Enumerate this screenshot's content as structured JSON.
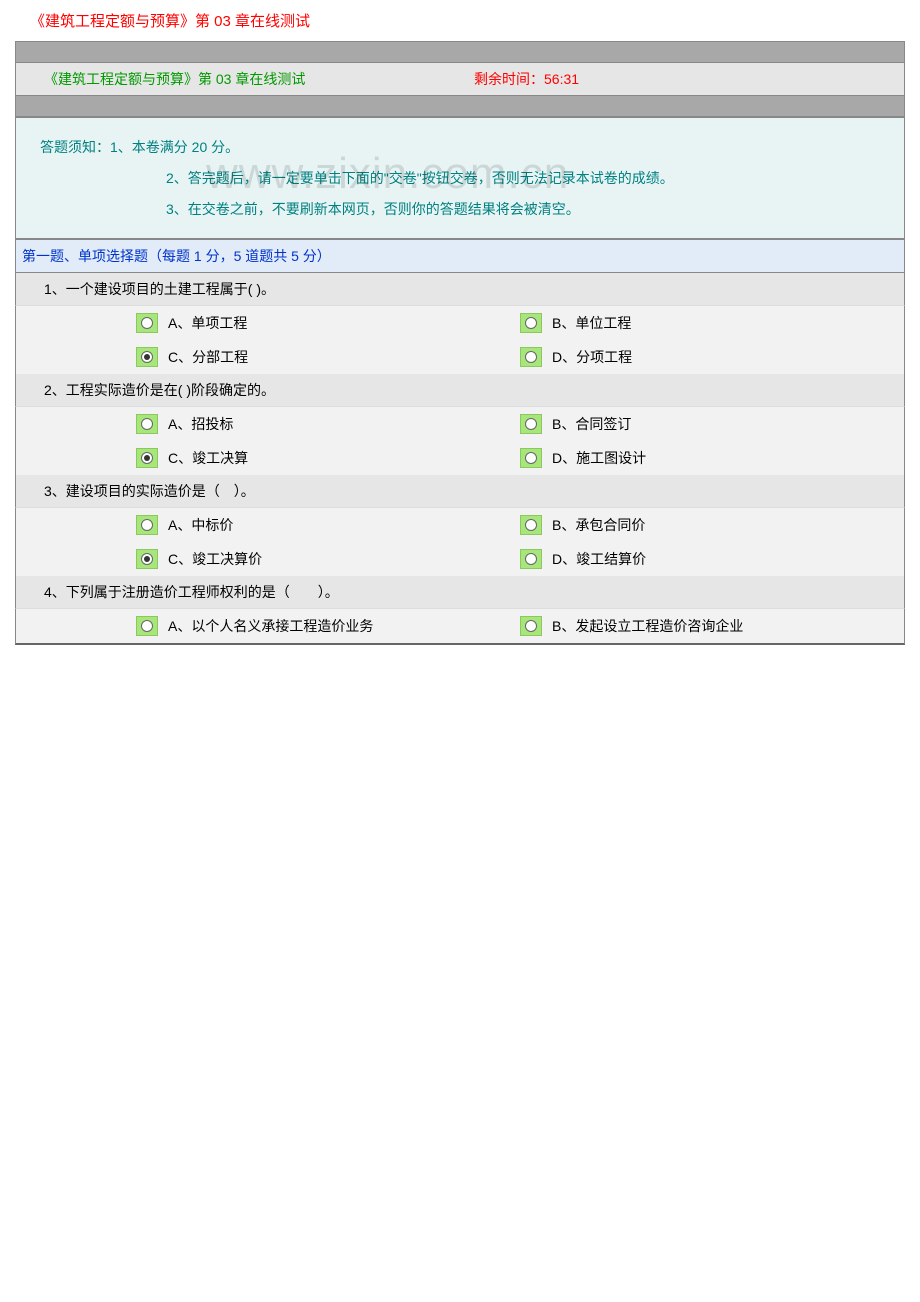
{
  "page_title": "《建筑工程定额与预算》第 03 章在线测试",
  "header": {
    "left": "《建筑工程定额与预算》第 03 章在线测试",
    "right": "剩余时间：56:31"
  },
  "watermark": "www.zixin.com.cn",
  "notice": {
    "line1": "答题须知：1、本卷满分 20 分。",
    "line2": "2、答完题后，请一定要单击下面的\"交卷\"按钮交卷，否则无法记录本试卷的成绩。",
    "line3": "3、在交卷之前，不要刷新本网页，否则你的答题结果将会被清空。"
  },
  "section_header": "第一题、单项选择题（每题 1 分，5 道题共 5 分）",
  "questions": [
    {
      "text": "1、一个建设项目的土建工程属于( )。",
      "options": [
        {
          "label": "A、单项工程",
          "checked": false
        },
        {
          "label": "B、单位工程",
          "checked": false
        },
        {
          "label": "C、分部工程",
          "checked": true
        },
        {
          "label": "D、分项工程",
          "checked": false
        }
      ]
    },
    {
      "text": "2、工程实际造价是在( )阶段确定的。",
      "options": [
        {
          "label": "A、招投标",
          "checked": false
        },
        {
          "label": "B、合同签订",
          "checked": false
        },
        {
          "label": "C、竣工决算",
          "checked": true
        },
        {
          "label": "D、施工图设计",
          "checked": false
        }
      ]
    },
    {
      "text": "3、建设项目的实际造价是（　）。",
      "options": [
        {
          "label": "A、中标价",
          "checked": false
        },
        {
          "label": "B、承包合同价",
          "checked": false
        },
        {
          "label": "C、竣工决算价",
          "checked": true
        },
        {
          "label": "D、竣工结算价",
          "checked": false
        }
      ]
    },
    {
      "text": "4、下列属于注册造价工程师权利的是（　　）。",
      "options": [
        {
          "label": "A、以个人名义承接工程造价业务",
          "checked": false
        },
        {
          "label": "B、发起设立工程造价咨询企业",
          "checked": false
        }
      ]
    }
  ],
  "colors": {
    "title_red": "#ff0000",
    "header_green": "#009900",
    "timer_red": "#ff0000",
    "notice_bg": "#e8f4f4",
    "notice_teal": "#008080",
    "section_bg": "#e2ecf8",
    "section_blue": "#0033cc",
    "q_bg": "#e6e6e6",
    "opt_bg": "#f2f2f2",
    "radio_bg": "#a6e67a",
    "gray_bar": "#a8a8a8"
  }
}
